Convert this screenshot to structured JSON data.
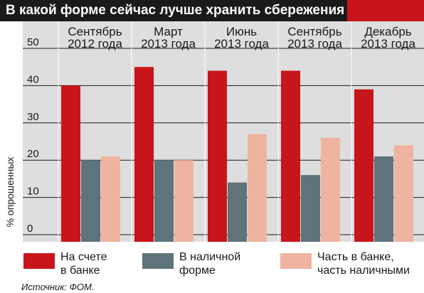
{
  "title": "В какой форме сейчас лучше хранить сбережения",
  "source": "Источник: ФОМ.",
  "colors": {
    "title_bg": "#1a1a1a",
    "title_accent": "#c8151b",
    "plot_bg": "#dedede",
    "bank": "#c8151b",
    "cash": "#5f737b",
    "mixed": "#efb49f"
  },
  "chart_data": {
    "type": "bar",
    "title": "В какой форме сейчас лучше хранить сбережения",
    "ylabel": "% опрошенных",
    "xlabel": "",
    "ylim": [
      0,
      50
    ],
    "yticks": [
      "0",
      "10",
      "20",
      "30",
      "40",
      "50"
    ],
    "grid": true,
    "legend_position": "bottom",
    "categories": [
      "Сентябрь\n2012 года",
      "Март\n2013 года",
      "Июнь\n2013 года",
      "Сентябрь\n2013 года",
      "Декабрь\n2013 года"
    ],
    "series": [
      {
        "name": "На счете\nв банке",
        "values": [
          40,
          45,
          44,
          44,
          39
        ]
      },
      {
        "name": "В наличной\nформе",
        "values": [
          20,
          20,
          14,
          16,
          21
        ]
      },
      {
        "name": "Часть в банке,\nчасть наличными",
        "values": [
          21,
          20,
          27,
          26,
          24
        ]
      }
    ]
  }
}
